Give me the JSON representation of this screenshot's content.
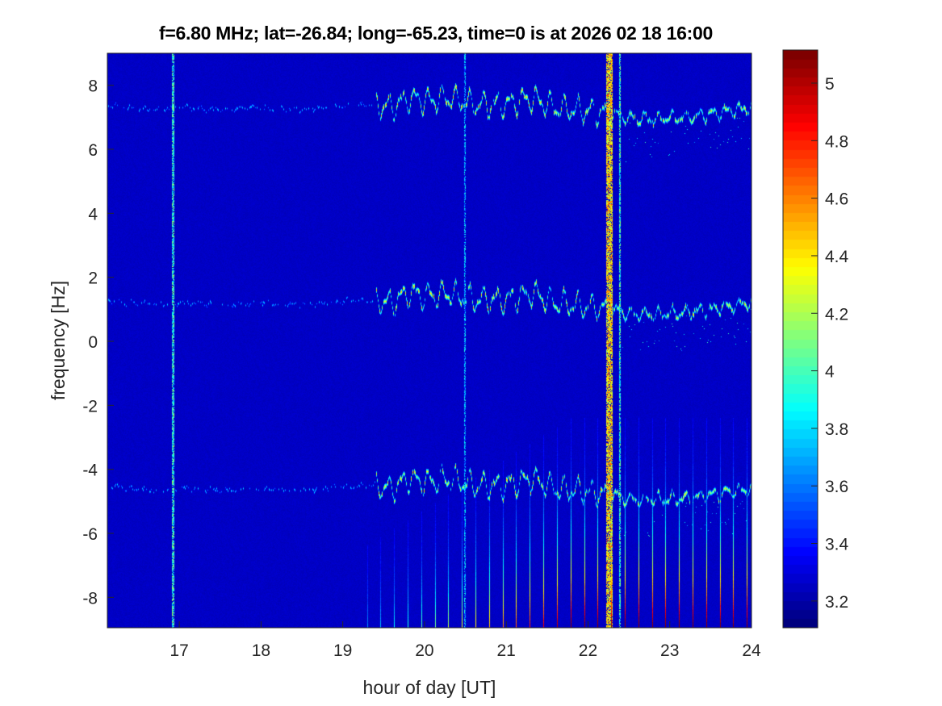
{
  "chart_data": {
    "type": "heatmap",
    "title": "f=6.80 MHz;  lat=-26.84; long=-65.23, time=0 is at 2026 02 18 16:00",
    "xlabel": "hour of day [UT]",
    "ylabel": "frequency [Hz]",
    "xlim": [
      16.12,
      24
    ],
    "ylim": [
      -8.95,
      9.0
    ],
    "xticks": [
      17,
      18,
      19,
      20,
      21,
      22,
      23,
      24
    ],
    "yticks": [
      -8,
      -6,
      -4,
      -2,
      0,
      2,
      4,
      6,
      8
    ],
    "colorbar": {
      "clim": [
        3.107,
        5.115
      ],
      "ticks": [
        3.2,
        3.4,
        3.6,
        3.8,
        4,
        4.2,
        4.4,
        4.6,
        4.8,
        5
      ],
      "colormap": "jet"
    },
    "background_level": 3.22,
    "traces": [
      {
        "name": "upper band",
        "offset_hz": 6.1
      },
      {
        "name": "central band",
        "offset_hz": 0
      },
      {
        "name": "lower band",
        "offset_hz": -5.8
      }
    ],
    "central_band_points": [
      [
        16.2,
        1.25
      ],
      [
        16.6,
        1.15
      ],
      [
        17.0,
        1.2
      ],
      [
        17.5,
        1.15
      ],
      [
        18.0,
        1.2
      ],
      [
        18.5,
        1.15
      ],
      [
        19.0,
        1.25
      ],
      [
        19.4,
        1.3
      ],
      [
        19.6,
        1.2
      ],
      [
        19.8,
        1.5
      ],
      [
        20.0,
        1.4
      ],
      [
        20.3,
        1.5
      ],
      [
        20.6,
        1.3
      ],
      [
        21.0,
        1.3
      ],
      [
        21.3,
        1.5
      ],
      [
        21.6,
        1.2
      ],
      [
        22.0,
        1.1
      ],
      [
        22.3,
        1.0
      ],
      [
        22.5,
        0.85
      ],
      [
        22.8,
        0.85
      ],
      [
        23.2,
        0.9
      ],
      [
        23.5,
        1.0
      ],
      [
        24.0,
        1.2
      ]
    ],
    "vertical_interference_hours": [
      16.93,
      20.5,
      22.27,
      22.4
    ],
    "pulse_train": {
      "start_hour": 19.3,
      "spacing_hours": 0.166
    }
  }
}
